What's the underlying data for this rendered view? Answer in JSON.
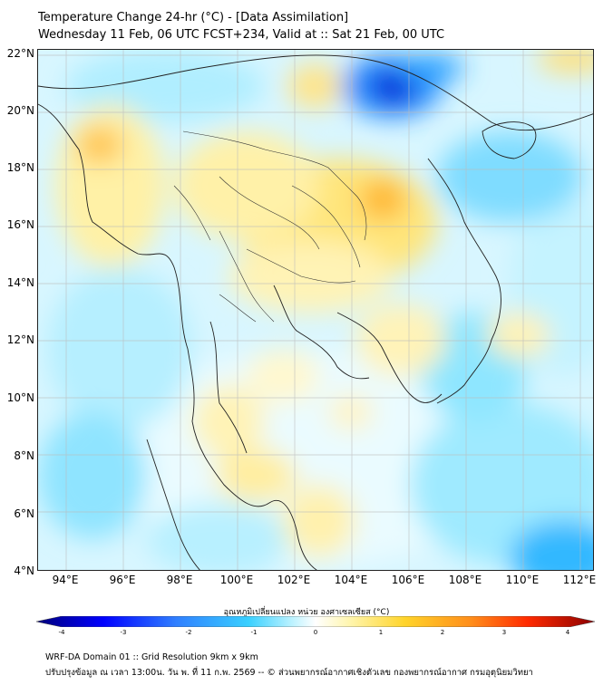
{
  "header": {
    "title_line1": "Temperature Change 24-hr (°C) - [Data Assimilation]",
    "title_line2": "Wednesday 11 Feb, 06 UTC FCST+234, Valid at :: Sat 21 Feb, 00 UTC"
  },
  "map": {
    "lat_labels": [
      "22°N",
      "20°N",
      "18°N",
      "16°N",
      "14°N",
      "12°N",
      "10°N",
      "8°N",
      "6°N",
      "4°N"
    ],
    "lon_labels": [
      "94°E",
      "96°E",
      "98°E",
      "100°E",
      "102°E",
      "104°E",
      "106°E",
      "108°E",
      "110°E",
      "112°E"
    ],
    "lat_range": [
      4,
      22.3
    ],
    "lon_range": [
      93,
      112.5
    ]
  },
  "colorbar": {
    "title": "อุณหภูมิเปลี่ยนแปลง หน่วย องศาเซลเซียส (°C)",
    "ticks": [
      "-4",
      "-3",
      "-2",
      "-1",
      "0",
      "1",
      "2",
      "3",
      "4"
    ],
    "colors": [
      "#00007a",
      "#0000ff",
      "#2f7fff",
      "#39d0ff",
      "#bff3ff",
      "#ffffff",
      "#fff6b0",
      "#ffd42a",
      "#ff8c1a",
      "#ff2a00",
      "#8b0000"
    ]
  },
  "footer": {
    "line1": "WRF-DA Domain 01 :: Grid Resolution 9km x 9km",
    "line2": "ปรับปรุงข้อมูล ณ เวลา 13:00น. วัน พ. ที่ 11 ก.พ. 2569 -- © ส่วนพยากรณ์อากาศเชิงตัวเลข กองพยากรณ์อากาศ กรมอุตุนิยมวิทยา"
  }
}
